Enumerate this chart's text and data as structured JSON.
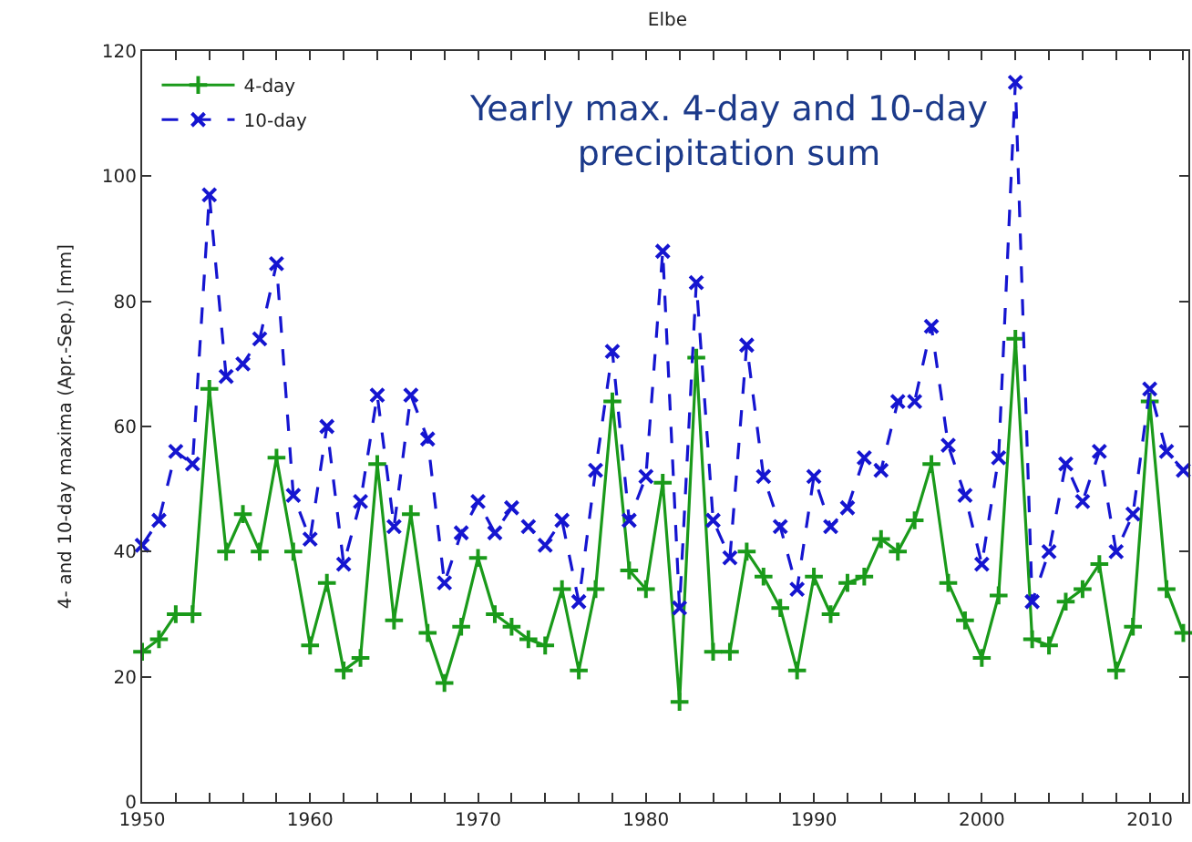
{
  "chart_data": {
    "type": "line",
    "title": "Elbe",
    "ylabel": "4- and 10-day maxima (Apr.-Sep.) [mm]",
    "annotations": [
      "Yearly max. 4-day and 10-day precipitation sum"
    ],
    "x": [
      1950,
      1951,
      1952,
      1953,
      1954,
      1955,
      1956,
      1957,
      1958,
      1959,
      1960,
      1961,
      1962,
      1963,
      1964,
      1965,
      1966,
      1967,
      1968,
      1969,
      1970,
      1971,
      1972,
      1973,
      1974,
      1975,
      1976,
      1977,
      1978,
      1979,
      1980,
      1981,
      1982,
      1983,
      1984,
      1985,
      1986,
      1987,
      1988,
      1989,
      1990,
      1991,
      1992,
      1993,
      1994,
      1995,
      1996,
      1997,
      1998,
      1999,
      2000,
      2001,
      2002,
      2003,
      2004,
      2005,
      2006,
      2007,
      2008,
      2009,
      2010,
      2011,
      2012
    ],
    "series": [
      {
        "name": "4-day",
        "color": "#1a9a1a",
        "marker": "cross",
        "line_style": "solid",
        "values": [
          24,
          26,
          30,
          30,
          66,
          40,
          46,
          40,
          55,
          40,
          25,
          35,
          21,
          23,
          54,
          29,
          46,
          27,
          19,
          28,
          39,
          30,
          28,
          26,
          25,
          34,
          21,
          34,
          64,
          37,
          34,
          51,
          16,
          71,
          24,
          24,
          40,
          36,
          31,
          21,
          36,
          30,
          35,
          36,
          42,
          40,
          45,
          54,
          35,
          29,
          23,
          33,
          74,
          26,
          25,
          32,
          34,
          38,
          21,
          28,
          64,
          34,
          27
        ]
      },
      {
        "name": "10-day",
        "color": "#1515d0",
        "marker": "x",
        "line_style": "dashed",
        "values": [
          41,
          45,
          56,
          54,
          97,
          68,
          70,
          74,
          86,
          49,
          42,
          60,
          38,
          48,
          65,
          44,
          65,
          58,
          35,
          43,
          48,
          43,
          47,
          44,
          41,
          45,
          32,
          53,
          72,
          45,
          52,
          88,
          31,
          83,
          45,
          39,
          73,
          52,
          44,
          34,
          52,
          44,
          47,
          55,
          53,
          64,
          64,
          76,
          57,
          49,
          38,
          55,
          115,
          32,
          40,
          54,
          48,
          56,
          40,
          46,
          66,
          56,
          53
        ]
      }
    ],
    "xlim": [
      1950,
      2012.3
    ],
    "xticks": [
      1950,
      {
        "value": 1952,
        "label": null
      },
      {
        "value": 1954,
        "label": null
      },
      {
        "value": 1956,
        "label": null
      },
      {
        "value": 1958,
        "label": null
      },
      1960,
      {
        "value": 1962,
        "label": null
      },
      {
        "value": 1964,
        "label": null
      },
      {
        "value": 1966,
        "label": null
      },
      {
        "value": 1968,
        "label": null
      },
      1970,
      {
        "value": 1972,
        "label": null
      },
      {
        "value": 1974,
        "label": null
      },
      {
        "value": 1976,
        "label": null
      },
      {
        "value": 1978,
        "label": null
      },
      1980,
      {
        "value": 1982,
        "label": null
      },
      {
        "value": 1984,
        "label": null
      },
      {
        "value": 1986,
        "label": null
      },
      {
        "value": 1988,
        "label": null
      },
      1990,
      {
        "value": 1992,
        "label": null
      },
      {
        "value": 1994,
        "label": null
      },
      {
        "value": 1996,
        "label": null
      },
      {
        "value": 1998,
        "label": null
      },
      2000,
      {
        "value": 2002,
        "label": null
      },
      {
        "value": 2004,
        "label": null
      },
      {
        "value": 2006,
        "label": null
      },
      {
        "value": 2008,
        "label": null
      },
      2010,
      {
        "value": 2012,
        "label": null
      }
    ],
    "ylim": [
      0,
      120
    ],
    "yticks": [
      0,
      20,
      40,
      60,
      80,
      100,
      120
    ],
    "legend": "top left"
  }
}
